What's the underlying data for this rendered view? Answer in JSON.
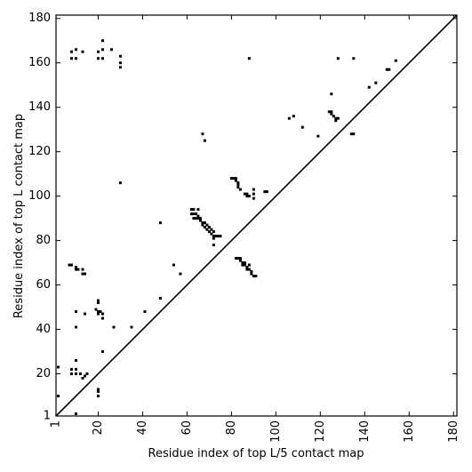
{
  "chart_data": {
    "type": "scatter",
    "xlabel": "Residue index of top L/5 contact map",
    "ylabel": "Residue index of top L contact map",
    "xlim": [
      1,
      181.5
    ],
    "ylim": [
      1,
      181.5
    ],
    "xticks": [
      1,
      20,
      40,
      60,
      80,
      100,
      120,
      140,
      160,
      180
    ],
    "yticks": [
      1,
      20,
      40,
      60,
      80,
      100,
      120,
      140,
      160,
      180
    ],
    "color": "#000000",
    "x": [
      8,
      8,
      10,
      10,
      13,
      20,
      20,
      22,
      22,
      22,
      26,
      30,
      30,
      30,
      30,
      48,
      54,
      57,
      7,
      8,
      10,
      10,
      11,
      13,
      13,
      14,
      10,
      14,
      10,
      19,
      20,
      20,
      21,
      22,
      22,
      20,
      20,
      27,
      35,
      41,
      22,
      10,
      8,
      10,
      8,
      10,
      13,
      14,
      15,
      12,
      20,
      20,
      20,
      2,
      2,
      10,
      48,
      88,
      128,
      135,
      150,
      151,
      154,
      145,
      142,
      125,
      106,
      108,
      112,
      119,
      62,
      63,
      65,
      62,
      63,
      64,
      65,
      63,
      64,
      65,
      66,
      66,
      67,
      68,
      67,
      69,
      68,
      70,
      69,
      71,
      70,
      72,
      71,
      72,
      73,
      74,
      75,
      72,
      72,
      67,
      68,
      80,
      81,
      82,
      82,
      83,
      83,
      83,
      84,
      86,
      87,
      87,
      88,
      90,
      90,
      90,
      95,
      96,
      82,
      83,
      84,
      85,
      85,
      86,
      87,
      88,
      88,
      89,
      89,
      90,
      91,
      84,
      86,
      87,
      124,
      125,
      125,
      126,
      127,
      127,
      128,
      134,
      135
    ],
    "y": [
      162,
      165,
      162,
      166,
      165,
      162,
      165,
      166,
      170,
      162,
      166,
      163,
      160,
      158,
      106,
      88,
      69,
      65,
      69,
      69,
      68,
      67,
      67,
      67,
      65,
      65,
      48,
      47,
      41,
      49,
      48,
      47,
      48,
      47,
      45,
      53,
      52,
      41,
      41,
      48,
      30,
      26,
      22,
      22,
      20,
      20,
      18,
      19,
      20,
      20,
      13,
      12,
      10,
      23,
      10,
      2,
      54,
      162,
      162,
      162,
      157,
      157,
      161,
      151,
      149,
      146,
      135,
      136,
      131,
      127,
      94,
      94,
      94,
      92,
      92,
      92,
      91,
      90,
      90,
      90,
      90,
      89,
      88,
      88,
      87,
      87,
      86,
      86,
      85,
      85,
      84,
      84,
      83,
      82,
      82,
      82,
      82,
      81,
      78,
      128,
      125,
      108,
      108,
      108,
      107,
      106,
      105,
      104,
      103,
      101,
      101,
      100,
      100,
      103,
      101,
      99,
      102,
      102,
      72,
      72,
      71,
      70,
      69,
      69,
      68,
      69,
      67,
      66,
      65,
      64,
      64,
      72,
      70,
      67,
      138,
      138,
      137,
      136,
      135,
      134,
      135,
      128,
      128
    ]
  }
}
